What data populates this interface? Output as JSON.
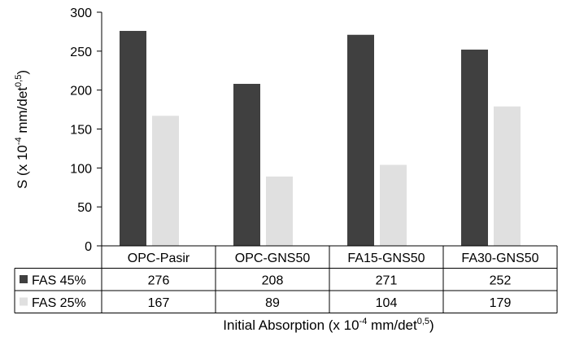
{
  "chart_data": {
    "type": "bar",
    "categories": [
      "OPC-Pasir",
      "OPC-GNS50",
      "FA15-GNS50",
      "FA30-GNS50"
    ],
    "series": [
      {
        "name": "FAS 45%",
        "values": [
          276,
          208,
          271,
          252
        ],
        "color": "#404040"
      },
      {
        "name": "FAS 25%",
        "values": [
          167,
          89,
          104,
          179
        ],
        "color": "#e0e0e0"
      }
    ],
    "ylabel": {
      "prefix": "S (x 10",
      "exp1": "-4",
      "mid": " mm/det",
      "exp2": "0,5",
      "suffix": ")"
    },
    "xlabel": {
      "prefix": "Initial Absorption  (x 10",
      "exp1": "-4",
      "mid": " mm/det",
      "exp2": "0,5",
      "suffix": ")"
    },
    "ylim": [
      0,
      300
    ],
    "yticks": [
      0,
      50,
      100,
      150,
      200,
      250,
      300
    ],
    "grid": false,
    "legend": "data-table"
  }
}
